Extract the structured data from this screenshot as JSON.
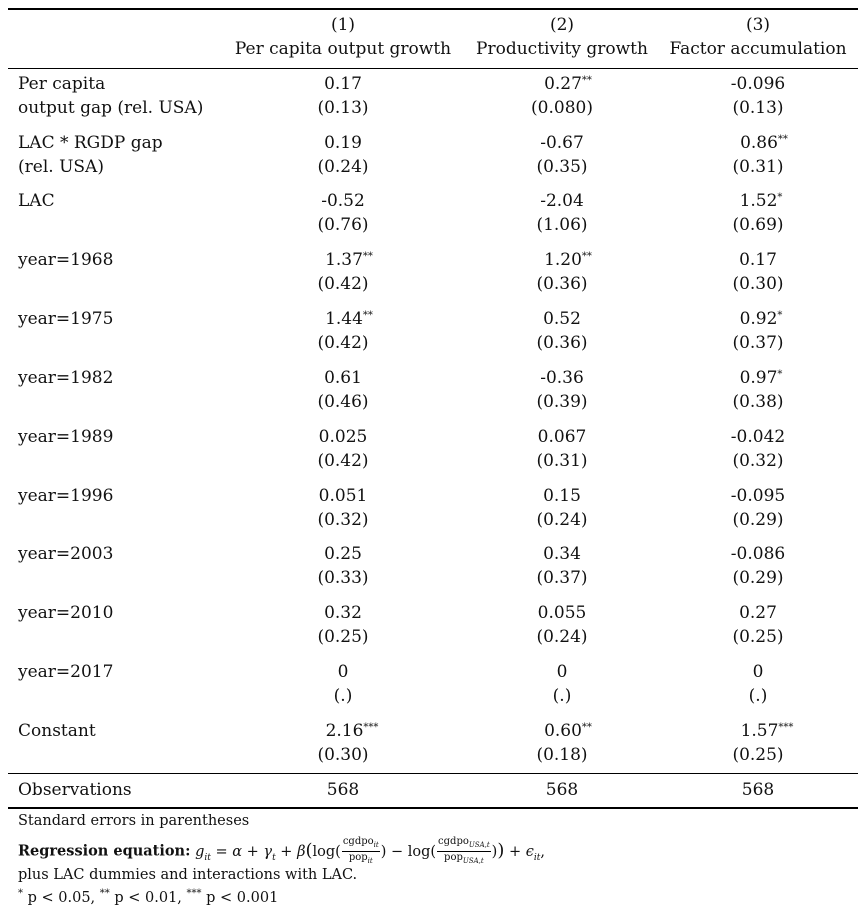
{
  "header": {
    "columns": [
      {
        "number": "(1)",
        "title": "Per capita output growth"
      },
      {
        "number": "(2)",
        "title": "Productivity growth"
      },
      {
        "number": "(3)",
        "title": "Factor accumulation"
      }
    ]
  },
  "rows": [
    {
      "label": [
        "Per capita",
        "output gap (rel. USA)"
      ],
      "coef": [
        [
          "0.17",
          ""
        ],
        [
          "0.27",
          "**"
        ],
        [
          "-0.096",
          ""
        ]
      ],
      "se": [
        "(0.13)",
        "(0.080)",
        "(0.13)"
      ]
    },
    {
      "label": [
        "LAC * RGDP gap",
        "(rel. USA)"
      ],
      "coef": [
        [
          "0.19",
          ""
        ],
        [
          "-0.67",
          ""
        ],
        [
          "0.86",
          "**"
        ]
      ],
      "se": [
        "(0.24)",
        "(0.35)",
        "(0.31)"
      ]
    },
    {
      "label": [
        "LAC"
      ],
      "coef": [
        [
          "-0.52",
          ""
        ],
        [
          "-2.04",
          ""
        ],
        [
          "1.52",
          "*"
        ]
      ],
      "se": [
        "(0.76)",
        "(1.06)",
        "(0.69)"
      ]
    },
    {
      "label": [
        "year=1968"
      ],
      "coef": [
        [
          "1.37",
          "**"
        ],
        [
          "1.20",
          "**"
        ],
        [
          "0.17",
          ""
        ]
      ],
      "se": [
        "(0.42)",
        "(0.36)",
        "(0.30)"
      ]
    },
    {
      "label": [
        "year=1975"
      ],
      "coef": [
        [
          "1.44",
          "**"
        ],
        [
          "0.52",
          ""
        ],
        [
          "0.92",
          "*"
        ]
      ],
      "se": [
        "(0.42)",
        "(0.36)",
        "(0.37)"
      ]
    },
    {
      "label": [
        "year=1982"
      ],
      "coef": [
        [
          "0.61",
          ""
        ],
        [
          "-0.36",
          ""
        ],
        [
          "0.97",
          "*"
        ]
      ],
      "se": [
        "(0.46)",
        "(0.39)",
        "(0.38)"
      ]
    },
    {
      "label": [
        "year=1989"
      ],
      "coef": [
        [
          "0.025",
          ""
        ],
        [
          "0.067",
          ""
        ],
        [
          "-0.042",
          ""
        ]
      ],
      "se": [
        "(0.42)",
        "(0.31)",
        "(0.32)"
      ]
    },
    {
      "label": [
        "year=1996"
      ],
      "coef": [
        [
          "0.051",
          ""
        ],
        [
          "0.15",
          ""
        ],
        [
          "-0.095",
          ""
        ]
      ],
      "se": [
        "(0.32)",
        "(0.24)",
        "(0.29)"
      ]
    },
    {
      "label": [
        "year=2003"
      ],
      "coef": [
        [
          "0.25",
          ""
        ],
        [
          "0.34",
          ""
        ],
        [
          "-0.086",
          ""
        ]
      ],
      "se": [
        "(0.33)",
        "(0.37)",
        "(0.29)"
      ]
    },
    {
      "label": [
        "year=2010"
      ],
      "coef": [
        [
          "0.32",
          ""
        ],
        [
          "0.055",
          ""
        ],
        [
          "0.27",
          ""
        ]
      ],
      "se": [
        "(0.25)",
        "(0.24)",
        "(0.25)"
      ]
    },
    {
      "label": [
        "year=2017"
      ],
      "coef": [
        [
          "0",
          ""
        ],
        [
          "0",
          ""
        ],
        [
          "0",
          ""
        ]
      ],
      "se": [
        "(.)",
        "(.)",
        "(.)"
      ]
    },
    {
      "label": [
        "Constant"
      ],
      "coef": [
        [
          "2.16",
          "***"
        ],
        [
          "0.60",
          "**"
        ],
        [
          "1.57",
          "***"
        ]
      ],
      "se": [
        "(0.30)",
        "(0.18)",
        "(0.25)"
      ]
    }
  ],
  "observations": {
    "label": "Observations",
    "values": [
      "568",
      "568",
      "568"
    ]
  },
  "notes": {
    "line1": "Standard errors in parentheses",
    "reg_bold": "Regression equation:",
    "line3": "plus LAC dummies and interactions with LAC.",
    "sig": [
      {
        "stars": "*",
        "text": "p < 0.05,"
      },
      {
        "stars": "**",
        "text": "p < 0.01,"
      },
      {
        "stars": "***",
        "text": "p < 0.001"
      }
    ]
  }
}
